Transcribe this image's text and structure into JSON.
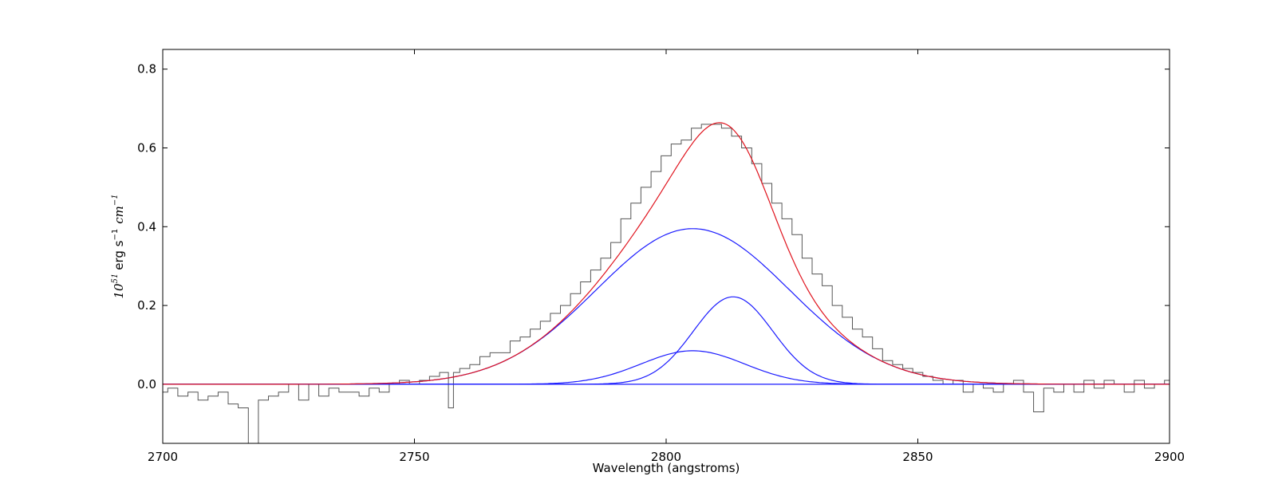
{
  "chart_data": {
    "type": "line",
    "xlabel": "Wavelength (angstroms)",
    "ylabel": {
      "base": "10",
      "exp": "51",
      "unit1": "erg s",
      "exp1": "−1",
      "unit2": "cm",
      "exp2": "−1"
    },
    "xlim": [
      2700,
      2900
    ],
    "ylim": [
      -0.15,
      0.85
    ],
    "xticks": [
      2700,
      2750,
      2800,
      2850,
      2900
    ],
    "xtick_labels": [
      "2700",
      "2750",
      "2800",
      "2850",
      "2900"
    ],
    "yticks": [
      0.0,
      0.2,
      0.4,
      0.6,
      0.8
    ],
    "ytick_labels": [
      "0.0",
      "0.2",
      "0.4",
      "0.6",
      "0.8"
    ],
    "grid": false,
    "colors": {
      "observed": "#555555",
      "total_fit": "#e0141e",
      "components": "#1a1aff"
    },
    "components": [
      {
        "amplitude": 0.395,
        "center": 2805.3,
        "sigma": 19.2
      },
      {
        "amplitude": 0.222,
        "center": 2813.3,
        "sigma": 7.9
      },
      {
        "amplitude": 0.085,
        "center": 2805.3,
        "sigma": 10.3
      }
    ],
    "baseline": 0.0,
    "observed": {
      "x": [
        2700,
        2702,
        2704,
        2706,
        2708,
        2710,
        2712,
        2714,
        2716,
        2718,
        2720,
        2722,
        2724,
        2726,
        2728,
        2730,
        2732,
        2734,
        2736,
        2738,
        2740,
        2742,
        2744,
        2746,
        2748,
        2750,
        2752,
        2754,
        2756,
        2757.5,
        2758,
        2760,
        2762,
        2764,
        2766,
        2768,
        2770,
        2772,
        2774,
        2776,
        2778,
        2780,
        2782,
        2784,
        2786,
        2788,
        2790,
        2792,
        2794,
        2796,
        2798,
        2800,
        2802,
        2804,
        2806,
        2808,
        2810,
        2812,
        2814,
        2816,
        2818,
        2820,
        2822,
        2824,
        2826,
        2828,
        2830,
        2832,
        2834,
        2836,
        2838,
        2840,
        2842,
        2844,
        2846,
        2848,
        2850,
        2852,
        2854,
        2856,
        2858,
        2860,
        2862,
        2864,
        2866,
        2868,
        2870,
        2872,
        2874,
        2876,
        2878,
        2880,
        2882,
        2884,
        2886,
        2888,
        2890,
        2892,
        2894,
        2896,
        2898,
        2900
      ],
      "y": [
        -0.02,
        -0.01,
        -0.03,
        -0.02,
        -0.04,
        -0.03,
        -0.02,
        -0.05,
        -0.06,
        -0.15,
        -0.04,
        -0.03,
        -0.02,
        0.0,
        -0.04,
        0.0,
        -0.03,
        -0.01,
        -0.02,
        -0.02,
        -0.03,
        -0.01,
        -0.02,
        0.0,
        0.01,
        0.0,
        0.01,
        0.02,
        0.03,
        -0.06,
        0.03,
        0.04,
        0.05,
        0.07,
        0.08,
        0.08,
        0.11,
        0.12,
        0.14,
        0.16,
        0.18,
        0.2,
        0.23,
        0.26,
        0.29,
        0.32,
        0.36,
        0.42,
        0.46,
        0.5,
        0.54,
        0.58,
        0.61,
        0.62,
        0.65,
        0.66,
        0.66,
        0.65,
        0.63,
        0.6,
        0.56,
        0.51,
        0.46,
        0.42,
        0.38,
        0.32,
        0.28,
        0.25,
        0.2,
        0.17,
        0.14,
        0.12,
        0.09,
        0.06,
        0.05,
        0.04,
        0.03,
        0.02,
        0.01,
        0.0,
        0.01,
        -0.02,
        0.0,
        -0.01,
        -0.02,
        0.0,
        0.01,
        -0.02,
        -0.07,
        -0.01,
        -0.02,
        0.0,
        -0.02,
        0.01,
        -0.01,
        0.01,
        0.0,
        -0.02,
        0.01,
        -0.01,
        0.0,
        0.01
      ]
    }
  }
}
